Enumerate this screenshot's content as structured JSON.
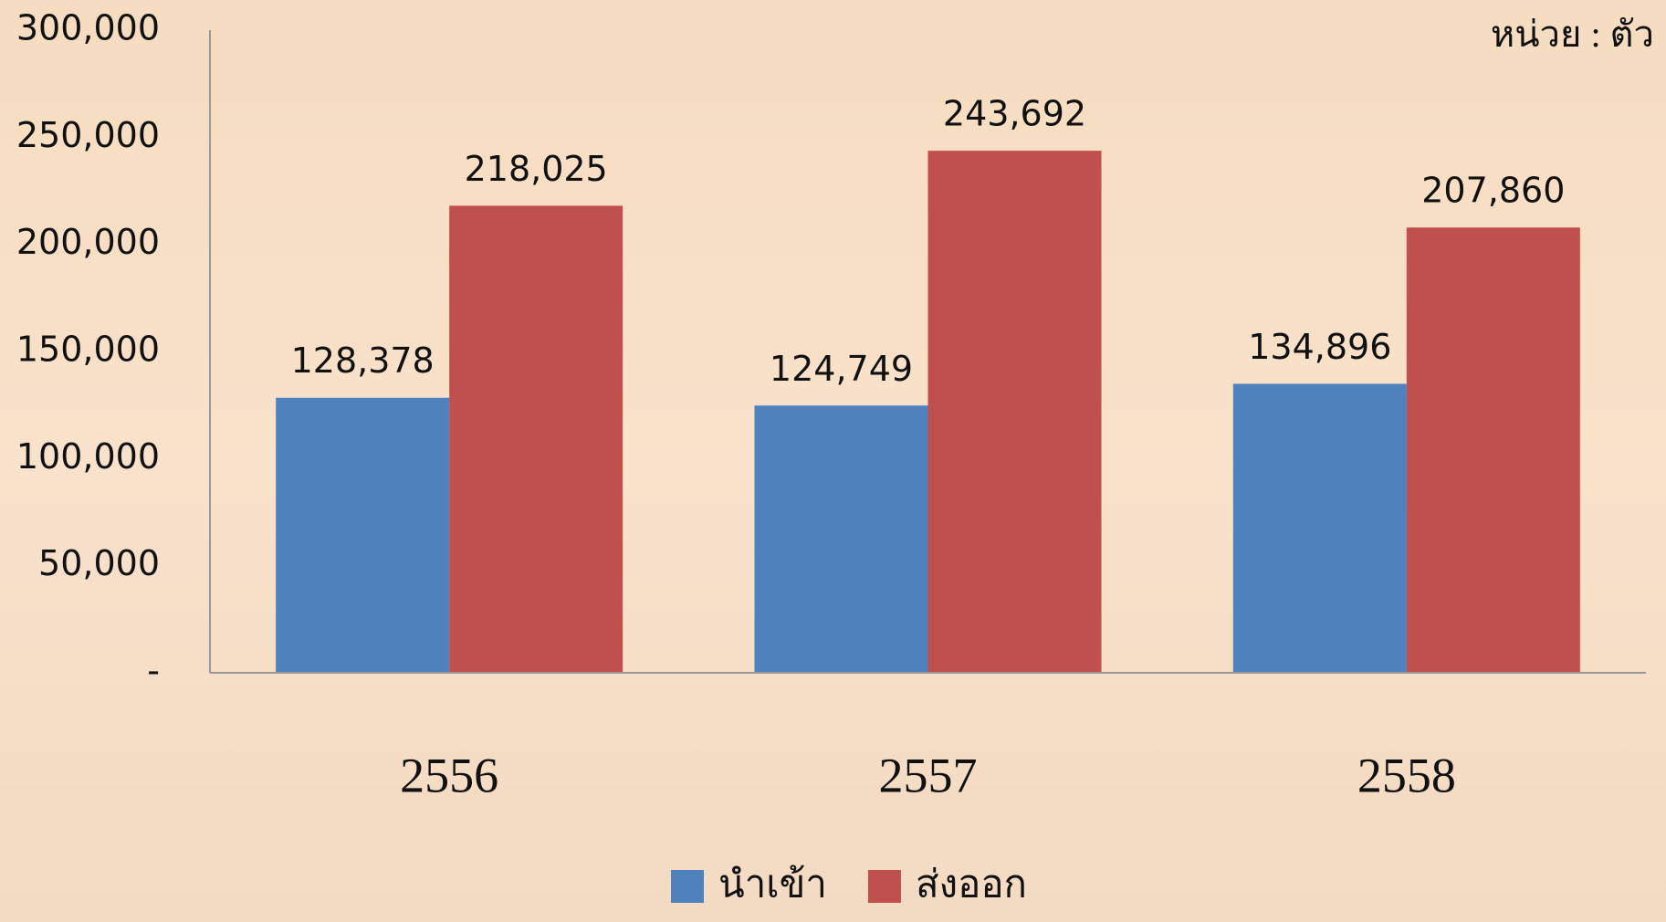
{
  "chart_data": {
    "type": "bar",
    "annotation": "หน่วย : ตัว",
    "categories": [
      "2556",
      "2557",
      "2558"
    ],
    "series": [
      {
        "name": "นำเข้า",
        "color": "#4f81bd",
        "values": [
          128378,
          124749,
          134896
        ],
        "value_labels": [
          "128,378",
          "124,749",
          "134,896"
        ]
      },
      {
        "name": "ส่งออก",
        "color": "#c0504d",
        "values": [
          218025,
          243692,
          207860
        ],
        "value_labels": [
          "218,025",
          "243,692",
          "207,860"
        ]
      }
    ],
    "ylim": [
      0,
      300000
    ],
    "yticks": [
      {
        "value": 0,
        "label": "-"
      },
      {
        "value": 50000,
        "label": "50,000"
      },
      {
        "value": 100000,
        "label": "100,000"
      },
      {
        "value": 150000,
        "label": "150,000"
      },
      {
        "value": 200000,
        "label": "200,000"
      },
      {
        "value": 250000,
        "label": "250,000"
      },
      {
        "value": 300000,
        "label": "300,000"
      }
    ],
    "grid": false,
    "legend": "bottom"
  }
}
